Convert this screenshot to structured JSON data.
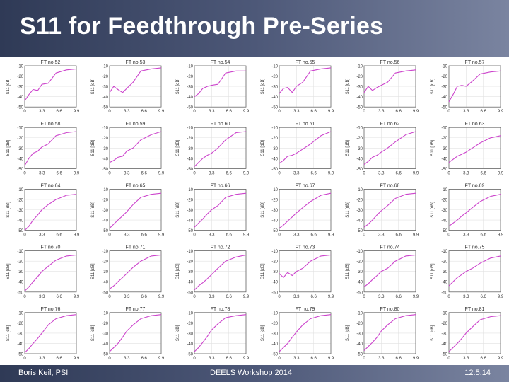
{
  "header": {
    "title": "S11 for Feedthrough Pre-Series"
  },
  "footer": {
    "author": "Boris Keil, PSI",
    "event": "DEELS Workshop 2014",
    "date": "12.5.14"
  },
  "chart_data": {
    "type": "line",
    "title": "S11 for Feedthrough Pre-Series",
    "ylabel": "S11 [dB]",
    "xlim": [
      0,
      9.9
    ],
    "ylim": [
      -50,
      -10
    ],
    "x_ticks": [
      "0",
      "3.3",
      "6.6",
      "9.9"
    ],
    "y_ticks": [
      "-10",
      "-20",
      "-30",
      "-40",
      "-50"
    ],
    "line_color": "#cc44cc",
    "panels": [
      {
        "label": "FT no.52",
        "points": [
          [
            0,
            -44
          ],
          [
            0.8,
            -38
          ],
          [
            1.6,
            -33
          ],
          [
            2.5,
            -34
          ],
          [
            3.3,
            -28
          ],
          [
            4.5,
            -27
          ],
          [
            6.0,
            -17
          ],
          [
            8.0,
            -14
          ],
          [
            9.9,
            -13
          ]
        ]
      },
      {
        "label": "FT no.53",
        "points": [
          [
            0,
            -36
          ],
          [
            0.8,
            -30
          ],
          [
            1.6,
            -33
          ],
          [
            2.5,
            -36
          ],
          [
            3.3,
            -32
          ],
          [
            4.5,
            -26
          ],
          [
            6.0,
            -15
          ],
          [
            8.0,
            -13
          ],
          [
            9.9,
            -12
          ]
        ]
      },
      {
        "label": "FT no.54",
        "points": [
          [
            0,
            -40
          ],
          [
            0.8,
            -37
          ],
          [
            1.6,
            -32
          ],
          [
            2.5,
            -30
          ],
          [
            3.3,
            -29
          ],
          [
            4.5,
            -28
          ],
          [
            6.0,
            -17
          ],
          [
            8.0,
            -15
          ],
          [
            9.9,
            -15
          ]
        ]
      },
      {
        "label": "FT no.55",
        "points": [
          [
            0,
            -37
          ],
          [
            0.8,
            -32
          ],
          [
            1.6,
            -31
          ],
          [
            2.5,
            -36
          ],
          [
            3.3,
            -30
          ],
          [
            4.5,
            -26
          ],
          [
            6.0,
            -15
          ],
          [
            8.0,
            -13
          ],
          [
            9.9,
            -12
          ]
        ]
      },
      {
        "label": "FT no.56",
        "points": [
          [
            0,
            -36
          ],
          [
            0.8,
            -30
          ],
          [
            1.6,
            -34
          ],
          [
            2.5,
            -31
          ],
          [
            3.3,
            -29
          ],
          [
            4.5,
            -26
          ],
          [
            6.0,
            -17
          ],
          [
            8.0,
            -15
          ],
          [
            9.9,
            -14
          ]
        ]
      },
      {
        "label": "FT no.57",
        "points": [
          [
            0,
            -45
          ],
          [
            0.8,
            -38
          ],
          [
            1.6,
            -30
          ],
          [
            2.5,
            -29
          ],
          [
            3.3,
            -30
          ],
          [
            4.5,
            -25
          ],
          [
            6.0,
            -18
          ],
          [
            8.0,
            -16
          ],
          [
            9.9,
            -15
          ]
        ]
      },
      {
        "label": "FT no.58",
        "points": [
          [
            0,
            -47
          ],
          [
            0.8,
            -40
          ],
          [
            1.6,
            -35
          ],
          [
            2.5,
            -33
          ],
          [
            3.3,
            -29
          ],
          [
            4.5,
            -26
          ],
          [
            6.0,
            -18
          ],
          [
            8.0,
            -15
          ],
          [
            9.9,
            -14
          ]
        ]
      },
      {
        "label": "FT no.59",
        "points": [
          [
            0,
            -44
          ],
          [
            0.8,
            -42
          ],
          [
            1.6,
            -39
          ],
          [
            2.5,
            -38
          ],
          [
            3.3,
            -33
          ],
          [
            4.5,
            -30
          ],
          [
            6.0,
            -22
          ],
          [
            8.0,
            -17
          ],
          [
            9.9,
            -14
          ]
        ]
      },
      {
        "label": "FT no.60",
        "points": [
          [
            0,
            -48
          ],
          [
            0.8,
            -44
          ],
          [
            1.6,
            -40
          ],
          [
            2.5,
            -37
          ],
          [
            3.3,
            -35
          ],
          [
            4.5,
            -30
          ],
          [
            6.0,
            -22
          ],
          [
            8.0,
            -15
          ],
          [
            9.9,
            -14
          ]
        ]
      },
      {
        "label": "FT no.61",
        "points": [
          [
            0,
            -45
          ],
          [
            0.8,
            -42
          ],
          [
            1.6,
            -38
          ],
          [
            2.5,
            -37
          ],
          [
            3.3,
            -35
          ],
          [
            4.5,
            -31
          ],
          [
            6.0,
            -26
          ],
          [
            8.0,
            -18
          ],
          [
            9.9,
            -14
          ]
        ]
      },
      {
        "label": "FT no.62",
        "points": [
          [
            0,
            -46
          ],
          [
            0.8,
            -43
          ],
          [
            1.6,
            -39
          ],
          [
            2.5,
            -37
          ],
          [
            3.3,
            -34
          ],
          [
            4.5,
            -30
          ],
          [
            6.0,
            -24
          ],
          [
            8.0,
            -17
          ],
          [
            9.9,
            -14
          ]
        ]
      },
      {
        "label": "FT no.63",
        "points": [
          [
            0,
            -44
          ],
          [
            0.8,
            -41
          ],
          [
            1.6,
            -38
          ],
          [
            2.5,
            -36
          ],
          [
            3.3,
            -34
          ],
          [
            4.5,
            -30
          ],
          [
            6.0,
            -25
          ],
          [
            8.0,
            -20
          ],
          [
            9.9,
            -18
          ]
        ]
      },
      {
        "label": "FT no.64",
        "points": [
          [
            0,
            -50
          ],
          [
            0.8,
            -46
          ],
          [
            1.6,
            -40
          ],
          [
            2.5,
            -35
          ],
          [
            3.3,
            -30
          ],
          [
            4.5,
            -25
          ],
          [
            6.0,
            -20
          ],
          [
            8.0,
            -16
          ],
          [
            9.9,
            -15
          ]
        ]
      },
      {
        "label": "FT no.65",
        "points": [
          [
            0,
            -48
          ],
          [
            0.8,
            -44
          ],
          [
            1.6,
            -40
          ],
          [
            2.5,
            -36
          ],
          [
            3.3,
            -32
          ],
          [
            4.5,
            -25
          ],
          [
            6.0,
            -18
          ],
          [
            8.0,
            -15
          ],
          [
            9.9,
            -14
          ]
        ]
      },
      {
        "label": "FT no.66",
        "points": [
          [
            0,
            -47
          ],
          [
            0.8,
            -43
          ],
          [
            1.6,
            -39
          ],
          [
            2.5,
            -34
          ],
          [
            3.3,
            -30
          ],
          [
            4.5,
            -26
          ],
          [
            6.0,
            -18
          ],
          [
            8.0,
            -15
          ],
          [
            9.9,
            -14
          ]
        ]
      },
      {
        "label": "FT no.67",
        "points": [
          [
            0,
            -48
          ],
          [
            0.8,
            -45
          ],
          [
            1.6,
            -41
          ],
          [
            2.5,
            -37
          ],
          [
            3.3,
            -33
          ],
          [
            4.5,
            -28
          ],
          [
            6.0,
            -22
          ],
          [
            8.0,
            -16
          ],
          [
            9.9,
            -14
          ]
        ]
      },
      {
        "label": "FT no.68",
        "points": [
          [
            0,
            -47
          ],
          [
            0.8,
            -44
          ],
          [
            1.6,
            -40
          ],
          [
            2.5,
            -35
          ],
          [
            3.3,
            -31
          ],
          [
            4.5,
            -26
          ],
          [
            6.0,
            -19
          ],
          [
            8.0,
            -15
          ],
          [
            9.9,
            -14
          ]
        ]
      },
      {
        "label": "FT no.69",
        "points": [
          [
            0,
            -46
          ],
          [
            0.8,
            -43
          ],
          [
            1.6,
            -40
          ],
          [
            2.5,
            -36
          ],
          [
            3.3,
            -33
          ],
          [
            4.5,
            -28
          ],
          [
            6.0,
            -22
          ],
          [
            8.0,
            -17
          ],
          [
            9.9,
            -15
          ]
        ]
      },
      {
        "label": "FT no.70",
        "points": [
          [
            0,
            -49
          ],
          [
            0.8,
            -45
          ],
          [
            1.6,
            -40
          ],
          [
            2.5,
            -35
          ],
          [
            3.3,
            -30
          ],
          [
            4.5,
            -25
          ],
          [
            6.0,
            -19
          ],
          [
            8.0,
            -15
          ],
          [
            9.9,
            -14
          ]
        ]
      },
      {
        "label": "FT no.71",
        "points": [
          [
            0,
            -47
          ],
          [
            0.8,
            -44
          ],
          [
            1.6,
            -40
          ],
          [
            2.5,
            -36
          ],
          [
            3.3,
            -32
          ],
          [
            4.5,
            -26
          ],
          [
            6.0,
            -20
          ],
          [
            8.0,
            -15
          ],
          [
            9.9,
            -14
          ]
        ]
      },
      {
        "label": "FT no.72",
        "points": [
          [
            0,
            -48
          ],
          [
            0.8,
            -44
          ],
          [
            1.6,
            -41
          ],
          [
            2.5,
            -37
          ],
          [
            3.3,
            -33
          ],
          [
            4.5,
            -27
          ],
          [
            6.0,
            -20
          ],
          [
            8.0,
            -16
          ],
          [
            9.9,
            -14
          ]
        ]
      },
      {
        "label": "FT no.73",
        "points": [
          [
            0,
            -32
          ],
          [
            0.8,
            -36
          ],
          [
            1.6,
            -31
          ],
          [
            2.5,
            -34
          ],
          [
            3.3,
            -30
          ],
          [
            4.5,
            -27
          ],
          [
            6.0,
            -20
          ],
          [
            8.0,
            -15
          ],
          [
            9.9,
            -14
          ]
        ]
      },
      {
        "label": "FT no.74",
        "points": [
          [
            0,
            -45
          ],
          [
            0.8,
            -42
          ],
          [
            1.6,
            -38
          ],
          [
            2.5,
            -34
          ],
          [
            3.3,
            -30
          ],
          [
            4.5,
            -27
          ],
          [
            6.0,
            -20
          ],
          [
            8.0,
            -15
          ],
          [
            9.9,
            -14
          ]
        ]
      },
      {
        "label": "FT no.75",
        "points": [
          [
            0,
            -44
          ],
          [
            0.8,
            -40
          ],
          [
            1.6,
            -36
          ],
          [
            2.5,
            -33
          ],
          [
            3.3,
            -30
          ],
          [
            4.5,
            -27
          ],
          [
            6.0,
            -22
          ],
          [
            8.0,
            -17
          ],
          [
            9.9,
            -15
          ]
        ]
      },
      {
        "label": "FT no.76",
        "points": [
          [
            0,
            -49
          ],
          [
            0.8,
            -45
          ],
          [
            1.6,
            -40
          ],
          [
            2.5,
            -35
          ],
          [
            3.3,
            -30
          ],
          [
            4.5,
            -22
          ],
          [
            6.0,
            -16
          ],
          [
            8.0,
            -13
          ],
          [
            9.9,
            -12
          ]
        ]
      },
      {
        "label": "FT no.77",
        "points": [
          [
            0,
            -48
          ],
          [
            0.8,
            -44
          ],
          [
            1.6,
            -40
          ],
          [
            2.5,
            -34
          ],
          [
            3.3,
            -28
          ],
          [
            4.5,
            -22
          ],
          [
            6.0,
            -16
          ],
          [
            8.0,
            -13
          ],
          [
            9.9,
            -12
          ]
        ]
      },
      {
        "label": "FT no.78",
        "points": [
          [
            0,
            -48
          ],
          [
            0.8,
            -44
          ],
          [
            1.6,
            -39
          ],
          [
            2.5,
            -33
          ],
          [
            3.3,
            -27
          ],
          [
            4.5,
            -21
          ],
          [
            6.0,
            -15
          ],
          [
            8.0,
            -13
          ],
          [
            9.9,
            -12
          ]
        ]
      },
      {
        "label": "FT no.79",
        "points": [
          [
            0,
            -48
          ],
          [
            0.8,
            -44
          ],
          [
            1.6,
            -40
          ],
          [
            2.5,
            -34
          ],
          [
            3.3,
            -29
          ],
          [
            4.5,
            -22
          ],
          [
            6.0,
            -16
          ],
          [
            8.0,
            -13
          ],
          [
            9.9,
            -12
          ]
        ]
      },
      {
        "label": "FT no.80",
        "points": [
          [
            0,
            -47
          ],
          [
            0.8,
            -43
          ],
          [
            1.6,
            -39
          ],
          [
            2.5,
            -34
          ],
          [
            3.3,
            -28
          ],
          [
            4.5,
            -22
          ],
          [
            6.0,
            -16
          ],
          [
            8.0,
            -13
          ],
          [
            9.9,
            -12
          ]
        ]
      },
      {
        "label": "FT no.81",
        "points": [
          [
            0,
            -48
          ],
          [
            0.8,
            -44
          ],
          [
            1.6,
            -40
          ],
          [
            2.5,
            -35
          ],
          [
            3.3,
            -30
          ],
          [
            4.5,
            -24
          ],
          [
            6.0,
            -17
          ],
          [
            8.0,
            -14
          ],
          [
            9.9,
            -13
          ]
        ]
      }
    ]
  }
}
